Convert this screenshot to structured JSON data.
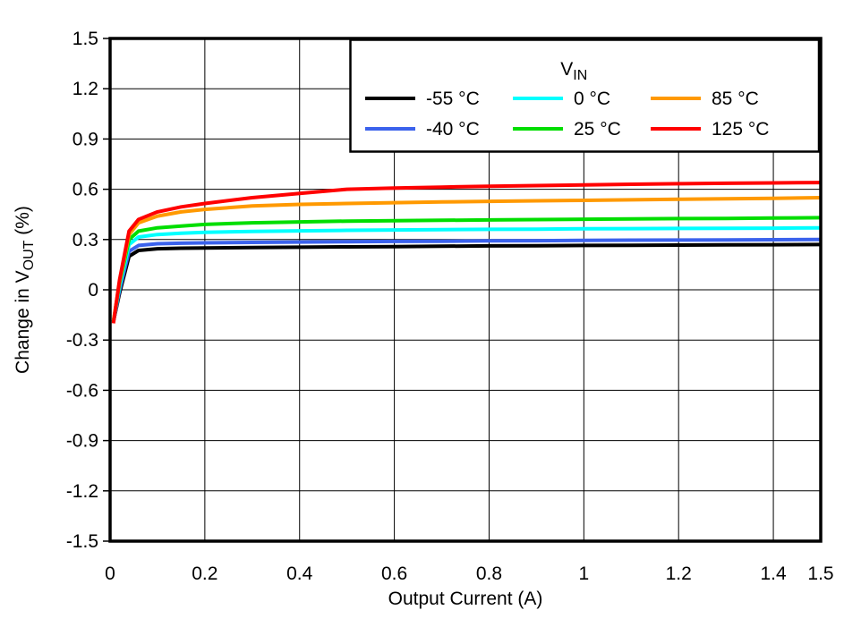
{
  "chart_data": {
    "type": "line",
    "title": "",
    "xlabel": "Output Current (A)",
    "ylabel_parts": [
      "Change in V",
      "OUT",
      " (%)"
    ],
    "legend": {
      "title_parts": [
        "V",
        "IN"
      ],
      "position": "top-right",
      "rows": 2,
      "fill_order": "column-major"
    },
    "xlim": [
      0,
      1.5
    ],
    "ylim": [
      -1.5,
      1.5
    ],
    "grid": true,
    "x_gridlines": [
      0.2,
      0.4,
      0.6,
      0.8,
      1.0,
      1.2,
      1.4
    ],
    "y_gridlines": [
      -1.2,
      -0.9,
      -0.6,
      -0.3,
      0,
      0.3,
      0.6,
      0.9,
      1.2
    ],
    "x_ticks": [
      {
        "v": 0,
        "label": "0"
      },
      {
        "v": 0.2,
        "label": "0.2"
      },
      {
        "v": 0.4,
        "label": "0.4"
      },
      {
        "v": 0.6,
        "label": "0.6"
      },
      {
        "v": 0.8,
        "label": "0.8"
      },
      {
        "v": 1.0,
        "label": "1"
      },
      {
        "v": 1.2,
        "label": "1.2"
      },
      {
        "v": 1.4,
        "label": "1.4"
      },
      {
        "v": 1.5,
        "label": "1.5"
      }
    ],
    "y_ticks": [
      {
        "v": 1.5,
        "label": "1.5"
      },
      {
        "v": 1.2,
        "label": "1.2"
      },
      {
        "v": 0.9,
        "label": "0.9"
      },
      {
        "v": 0.6,
        "label": "0.6"
      },
      {
        "v": 0.3,
        "label": "0.3"
      },
      {
        "v": 0,
        "label": "0"
      },
      {
        "v": -0.3,
        "label": "-0.3"
      },
      {
        "v": -0.6,
        "label": "-0.6"
      },
      {
        "v": -0.9,
        "label": "-0.9"
      },
      {
        "v": -1.2,
        "label": "-1.2"
      },
      {
        "v": -1.5,
        "label": "-1.5"
      }
    ],
    "x": [
      0.007,
      0.02,
      0.04,
      0.06,
      0.1,
      0.15,
      0.2,
      0.3,
      0.4,
      0.5,
      0.6,
      0.7,
      0.8,
      0.9,
      1.0,
      1.1,
      1.2,
      1.3,
      1.4,
      1.5
    ],
    "series": [
      {
        "name": "-55 °C",
        "color": "#000000",
        "values": [
          -0.19,
          -0.02,
          0.2,
          0.235,
          0.245,
          0.248,
          0.25,
          0.252,
          0.254,
          0.256,
          0.258,
          0.26,
          0.262,
          0.263,
          0.265,
          0.266,
          0.267,
          0.268,
          0.269,
          0.27
        ]
      },
      {
        "name": "-40 °C",
        "color": "#3B62EC",
        "values": [
          -0.19,
          0.0,
          0.23,
          0.265,
          0.275,
          0.278,
          0.28,
          0.283,
          0.285,
          0.287,
          0.289,
          0.29,
          0.292,
          0.293,
          0.295,
          0.296,
          0.297,
          0.298,
          0.299,
          0.3
        ]
      },
      {
        "name": "0 °C",
        "color": "#00FFFF",
        "values": [
          -0.19,
          0.02,
          0.27,
          0.315,
          0.33,
          0.338,
          0.343,
          0.348,
          0.352,
          0.355,
          0.357,
          0.359,
          0.361,
          0.362,
          0.364,
          0.365,
          0.366,
          0.367,
          0.368,
          0.37
        ]
      },
      {
        "name": "25 °C",
        "color": "#00DE00",
        "values": [
          -0.19,
          0.04,
          0.3,
          0.35,
          0.37,
          0.38,
          0.39,
          0.4,
          0.405,
          0.41,
          0.412,
          0.415,
          0.417,
          0.419,
          0.421,
          0.423,
          0.425,
          0.426,
          0.428,
          0.43
        ]
      },
      {
        "name": "85 °C",
        "color": "#FF9900",
        "values": [
          -0.19,
          0.05,
          0.33,
          0.4,
          0.44,
          0.465,
          0.48,
          0.5,
          0.51,
          0.515,
          0.52,
          0.524,
          0.528,
          0.531,
          0.534,
          0.537,
          0.54,
          0.543,
          0.546,
          0.55
        ]
      },
      {
        "name": "125 °C",
        "color": "#FF0000",
        "values": [
          -0.2,
          0.06,
          0.35,
          0.42,
          0.465,
          0.495,
          0.515,
          0.55,
          0.575,
          0.6,
          0.607,
          0.613,
          0.618,
          0.622,
          0.626,
          0.63,
          0.633,
          0.636,
          0.638,
          0.64
        ]
      }
    ],
    "colors": {
      "axis": "#000000",
      "grid": "#000000",
      "background": "#ffffff"
    }
  }
}
